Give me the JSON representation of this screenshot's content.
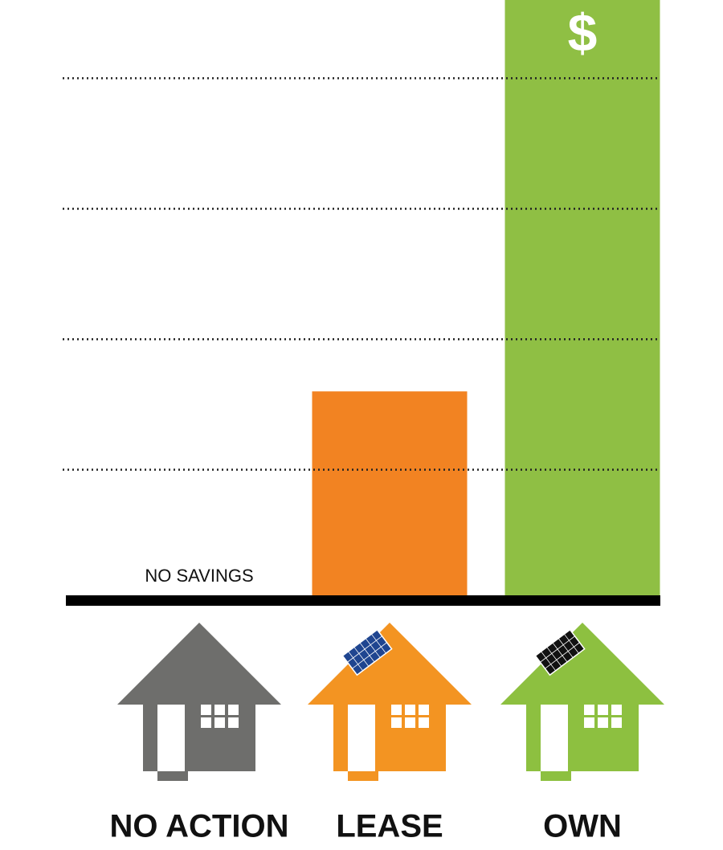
{
  "chart_data": {
    "type": "bar",
    "categories": [
      "NO ACTION",
      "LEASE",
      "OWN"
    ],
    "values": [
      0,
      1.6,
      4.6
    ],
    "colors": [
      "#6e6e6c",
      "#f28322",
      "#8fbf44"
    ],
    "ylim": [
      0,
      4.6
    ],
    "yticks": [
      1,
      2,
      3,
      4
    ],
    "grid": true,
    "annotations": [
      "NO SAVINGS",
      "$"
    ]
  }
}
